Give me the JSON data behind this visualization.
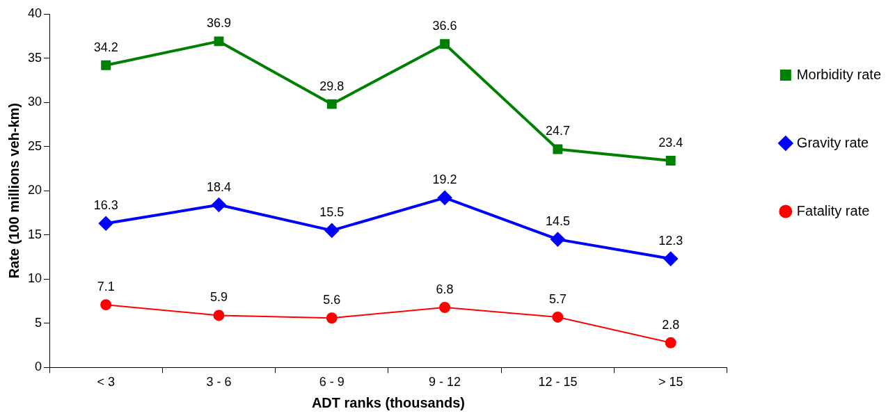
{
  "chart_data": {
    "type": "line",
    "xlabel": "ADT ranks (thousands)",
    "ylabel": "Rate (100 millions veh-km)",
    "categories": [
      "< 3",
      "3 - 6",
      "6 - 9",
      "9 - 12",
      "12 - 15",
      "> 15"
    ],
    "series": [
      {
        "name": "Morbidity rate",
        "color": "#008000",
        "marker": "square",
        "values": [
          34.2,
          36.9,
          29.8,
          36.6,
          24.7,
          23.4
        ]
      },
      {
        "name": "Gravity rate",
        "color": "#0000ff",
        "marker": "diamond",
        "values": [
          16.3,
          18.4,
          15.5,
          19.2,
          14.5,
          12.3
        ]
      },
      {
        "name": "Fatality rate",
        "color": "#ff0000",
        "marker": "circle",
        "values": [
          7.1,
          5.9,
          5.6,
          6.8,
          5.7,
          2.8
        ]
      }
    ],
    "ylim": [
      0,
      40
    ],
    "yticks": [
      0,
      5,
      10,
      15,
      20,
      25,
      30,
      35,
      40
    ],
    "grid": false,
    "legend": "right",
    "data_labels": true,
    "line_style": "solid"
  }
}
